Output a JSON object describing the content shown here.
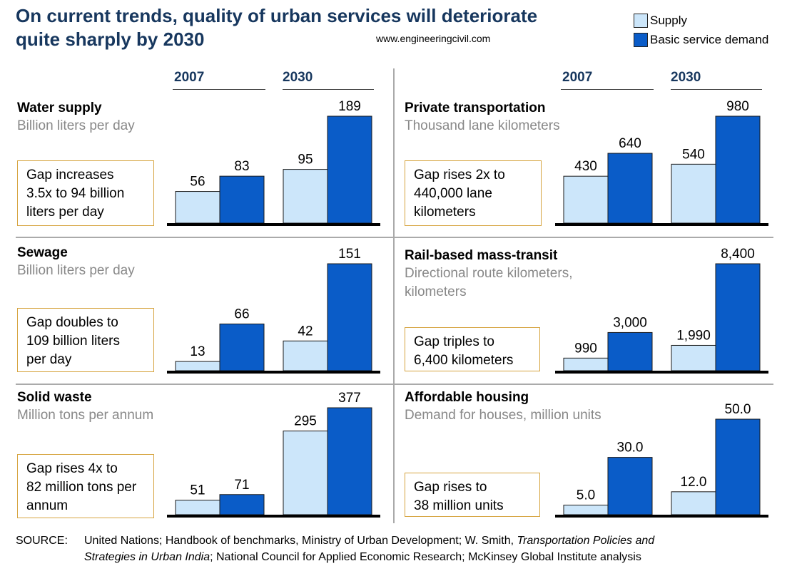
{
  "title_line1": "On current trends, quality of urban services will deteriorate",
  "title_line2": "quite sharply by 2030",
  "watermark": "www.engineeringcivil.com",
  "legend": [
    {
      "label": "Supply",
      "color": "#cce6fa"
    },
    {
      "label": "Basic service demand",
      "color": "#0a5cc8"
    }
  ],
  "years": [
    "2007",
    "2030"
  ],
  "colors": {
    "supply": "#cce6fa",
    "demand": "#0a5cc8",
    "title": "#17375e",
    "box_border": "#d6a43f"
  },
  "panels": [
    {
      "title": "Water supply",
      "subtitle": "Billion liters per day",
      "gap_lines": [
        "Gap increases",
        "3.5x to 94 billion",
        "liters per day"
      ]
    },
    {
      "title": "Private transportation",
      "subtitle": "Thousand lane kilometers",
      "gap_lines": [
        "Gap rises 2x to",
        "440,000 lane",
        "kilometers"
      ]
    },
    {
      "title": "Sewage",
      "subtitle": "Billion liters per day",
      "gap_lines": [
        "Gap doubles to",
        "109 billion liters",
        "per day"
      ]
    },
    {
      "title": "Rail-based mass-transit",
      "subtitle_lines": [
        "Directional route kilometers,",
        "kilometers"
      ],
      "gap_lines": [
        "Gap triples to",
        "6,400 kilometers"
      ]
    },
    {
      "title": "Solid waste",
      "subtitle": "Million tons per annum",
      "gap_lines": [
        "Gap rises 4x to",
        "82 million tons per",
        "annum"
      ]
    },
    {
      "title": "Affordable housing",
      "subtitle": "Demand for houses, million units",
      "gap_lines": [
        "Gap rises to",
        "38 million units"
      ]
    }
  ],
  "chart_data": [
    {
      "type": "bar",
      "title": "Water supply",
      "categories": [
        "2007",
        "2030"
      ],
      "series": [
        {
          "name": "Supply",
          "values": [
            56,
            95
          ]
        },
        {
          "name": "Basic service demand",
          "values": [
            83,
            189
          ]
        }
      ],
      "labels": [
        [
          "56",
          "83"
        ],
        [
          "95",
          "189"
        ]
      ]
    },
    {
      "type": "bar",
      "title": "Private transportation",
      "categories": [
        "2007",
        "2030"
      ],
      "series": [
        {
          "name": "Supply",
          "values": [
            430,
            540
          ]
        },
        {
          "name": "Basic service demand",
          "values": [
            640,
            980
          ]
        }
      ],
      "labels": [
        [
          "430",
          "640"
        ],
        [
          "540",
          "980"
        ]
      ]
    },
    {
      "type": "bar",
      "title": "Sewage",
      "categories": [
        "2007",
        "2030"
      ],
      "series": [
        {
          "name": "Supply",
          "values": [
            13,
            42
          ]
        },
        {
          "name": "Basic service demand",
          "values": [
            66,
            151
          ]
        }
      ],
      "labels": [
        [
          "13",
          "66"
        ],
        [
          "42",
          "151"
        ]
      ]
    },
    {
      "type": "bar",
      "title": "Rail-based mass-transit",
      "categories": [
        "2007",
        "2030"
      ],
      "series": [
        {
          "name": "Supply",
          "values": [
            990,
            1990
          ]
        },
        {
          "name": "Basic service demand",
          "values": [
            3000,
            8400
          ]
        }
      ],
      "labels": [
        [
          "990",
          "3,000"
        ],
        [
          "1,990",
          "8,400"
        ]
      ]
    },
    {
      "type": "bar",
      "title": "Solid waste",
      "categories": [
        "2007",
        "2030"
      ],
      "series": [
        {
          "name": "Supply",
          "values": [
            51,
            295
          ]
        },
        {
          "name": "Basic service demand",
          "values": [
            71,
            377
          ]
        }
      ],
      "labels": [
        [
          "51",
          "71"
        ],
        [
          "295",
          "377"
        ]
      ]
    },
    {
      "type": "bar",
      "title": "Affordable housing",
      "categories": [
        "2007",
        "2030"
      ],
      "series": [
        {
          "name": "Supply",
          "values": [
            5.0,
            12.0
          ]
        },
        {
          "name": "Basic service demand",
          "values": [
            30.0,
            50.0
          ]
        }
      ],
      "labels": [
        [
          "5.0",
          "30.0"
        ],
        [
          "12.0",
          "50.0"
        ]
      ]
    }
  ],
  "source": {
    "label": "SOURCE:",
    "line1_a": "United Nations; Handbook of benchmarks, Ministry of Urban Development; W. Smith, ",
    "line1_i": "Transportation Policies and",
    "line2_i": "Strategies in Urban India",
    "line2_b": "; National Council for Applied Economic Research; McKinsey Global Institute analysis"
  }
}
